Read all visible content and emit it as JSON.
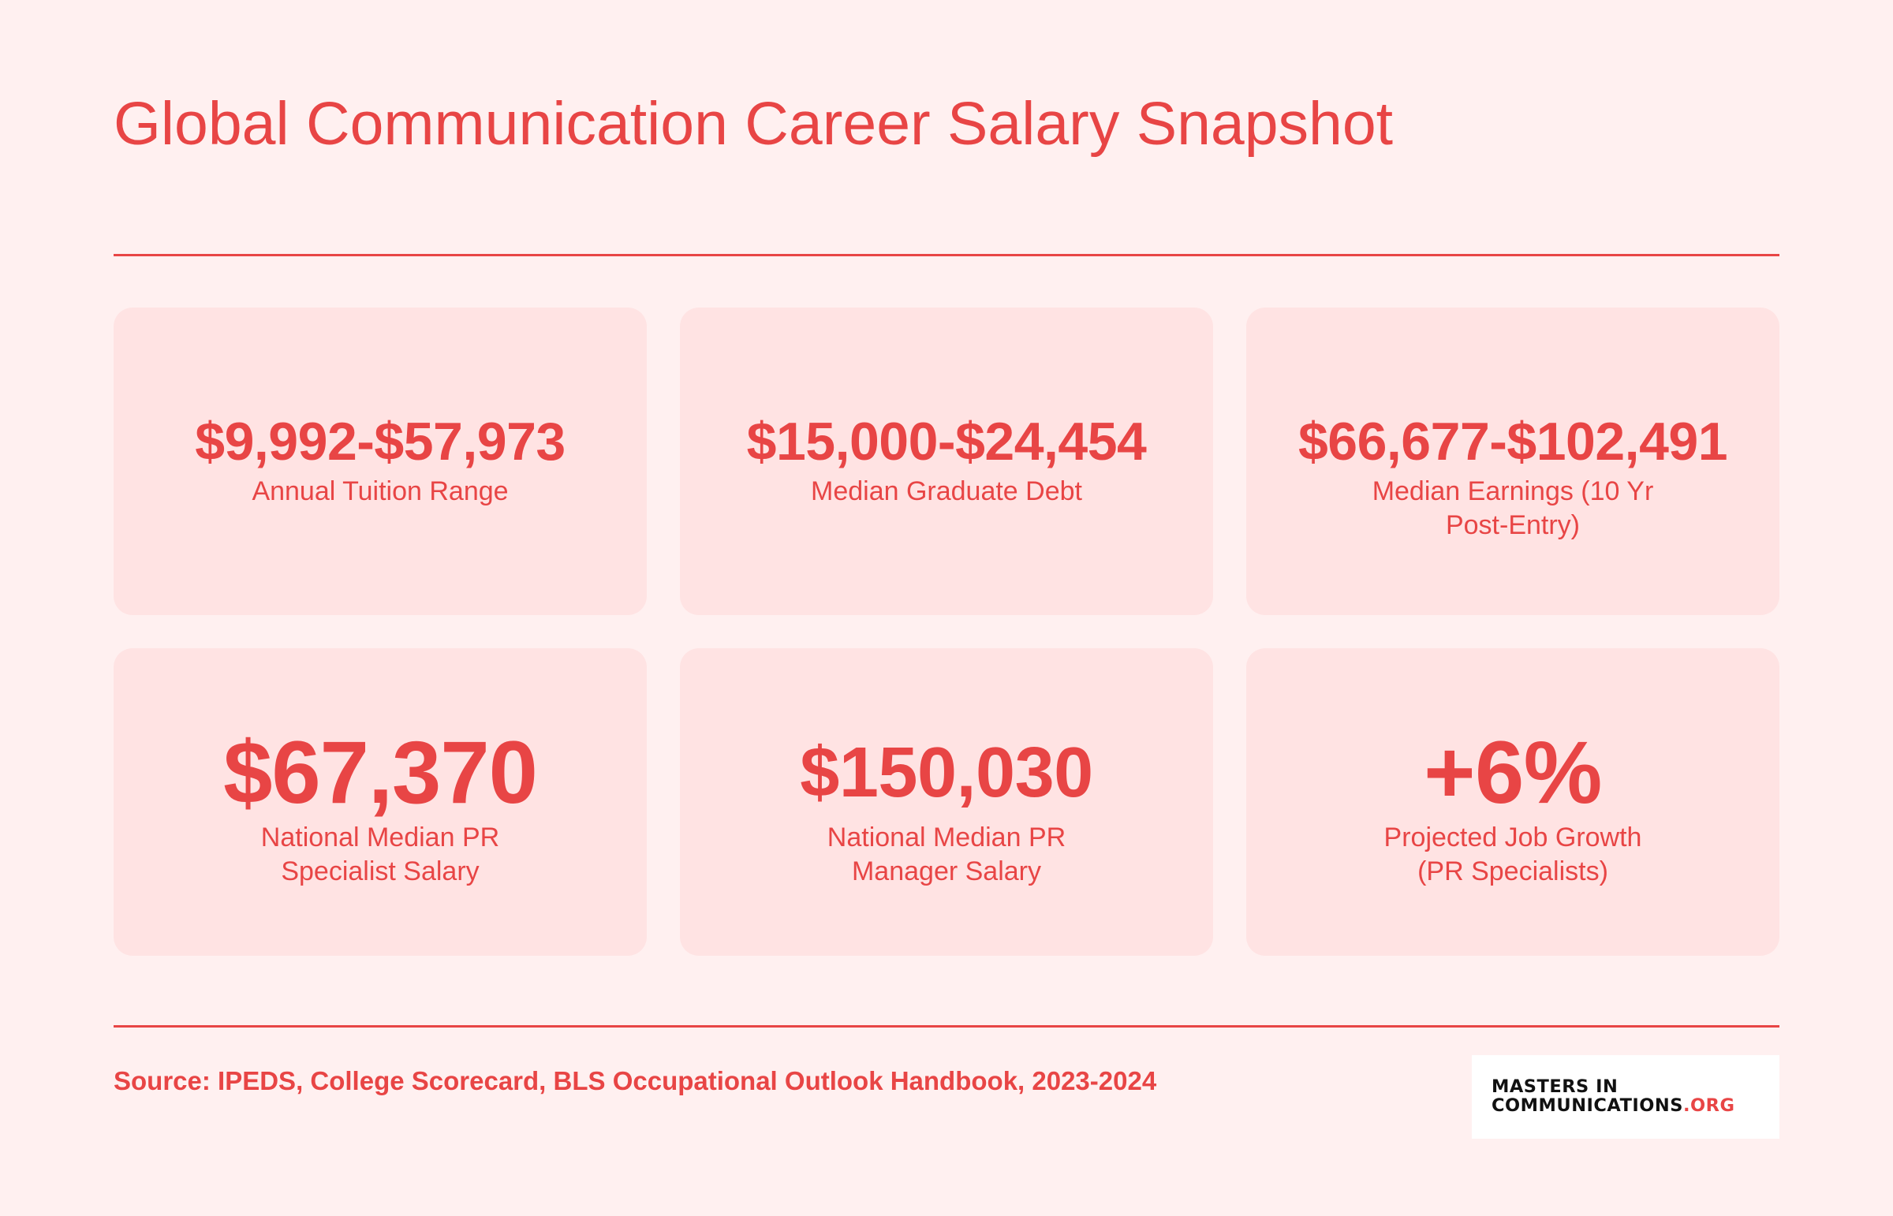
{
  "header": {
    "title": "Global Communication Career Salary Snapshot"
  },
  "stats": [
    {
      "value": "$9,992-$57,973",
      "label": "Annual Tuition Range"
    },
    {
      "value": "$15,000-$24,454",
      "label": "Median Graduate Debt"
    },
    {
      "value": "$66,677-$102,491",
      "label": "Median Earnings (10 Yr Post-Entry)"
    },
    {
      "value": "$67,370",
      "label": "National Median PR Specialist Salary"
    },
    {
      "value": "$150,030",
      "label": "National Median PR Manager Salary"
    },
    {
      "value": "+6%",
      "label": "Projected Job Growth (PR Specialists)"
    }
  ],
  "footer": {
    "source": "Source: IPEDS, College Scorecard, BLS Occupational Outlook Handbook, 2023-2024",
    "logo_line1": "MASTERS IN",
    "logo_line2": "COMMUNICATIONS",
    "logo_suffix": ".ORG"
  },
  "colors": {
    "accent": "#e84545",
    "background": "#fff0f0",
    "card": "#ffe3e3"
  }
}
